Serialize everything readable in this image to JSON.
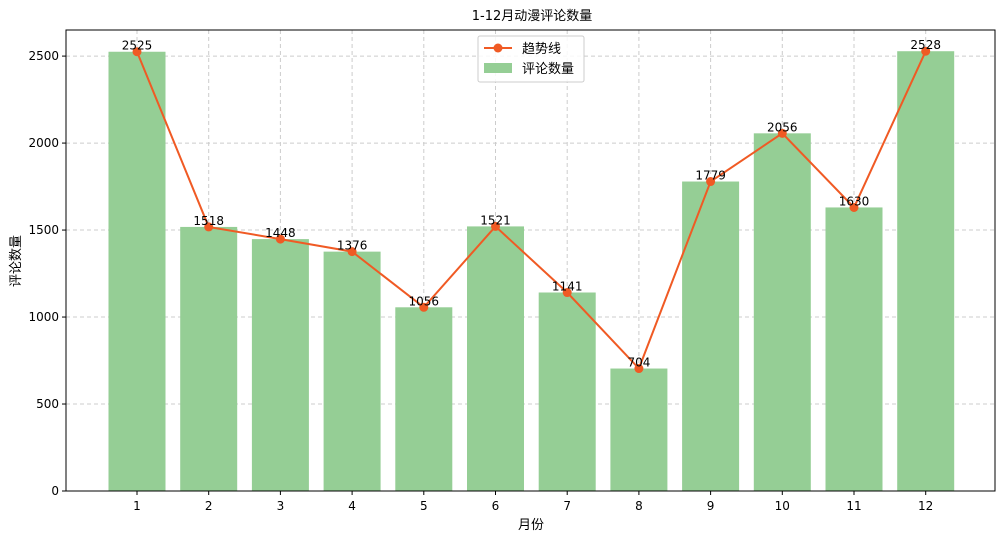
{
  "chart_data": {
    "type": "bar",
    "title": "1-12月动漫评论数量",
    "xlabel": "月份",
    "ylabel": "评论数量",
    "categories": [
      "1",
      "2",
      "3",
      "4",
      "5",
      "6",
      "7",
      "8",
      "9",
      "10",
      "11",
      "12"
    ],
    "series": [
      {
        "name": "评论数量",
        "type": "bar",
        "color": "#95ce95",
        "values": [
          2525,
          1518,
          1448,
          1376,
          1056,
          1521,
          1141,
          704,
          1779,
          2056,
          1630,
          2528
        ]
      },
      {
        "name": "趋势线",
        "type": "line",
        "color": "#f05a24",
        "values": [
          2525,
          1518,
          1448,
          1376,
          1056,
          1521,
          1141,
          704,
          1779,
          2056,
          1630,
          2528
        ]
      }
    ],
    "ylim": [
      0,
      2650
    ],
    "yticks": [
      0,
      500,
      1000,
      1500,
      2000,
      2500
    ],
    "grid": true,
    "legend_position": "top-center"
  }
}
